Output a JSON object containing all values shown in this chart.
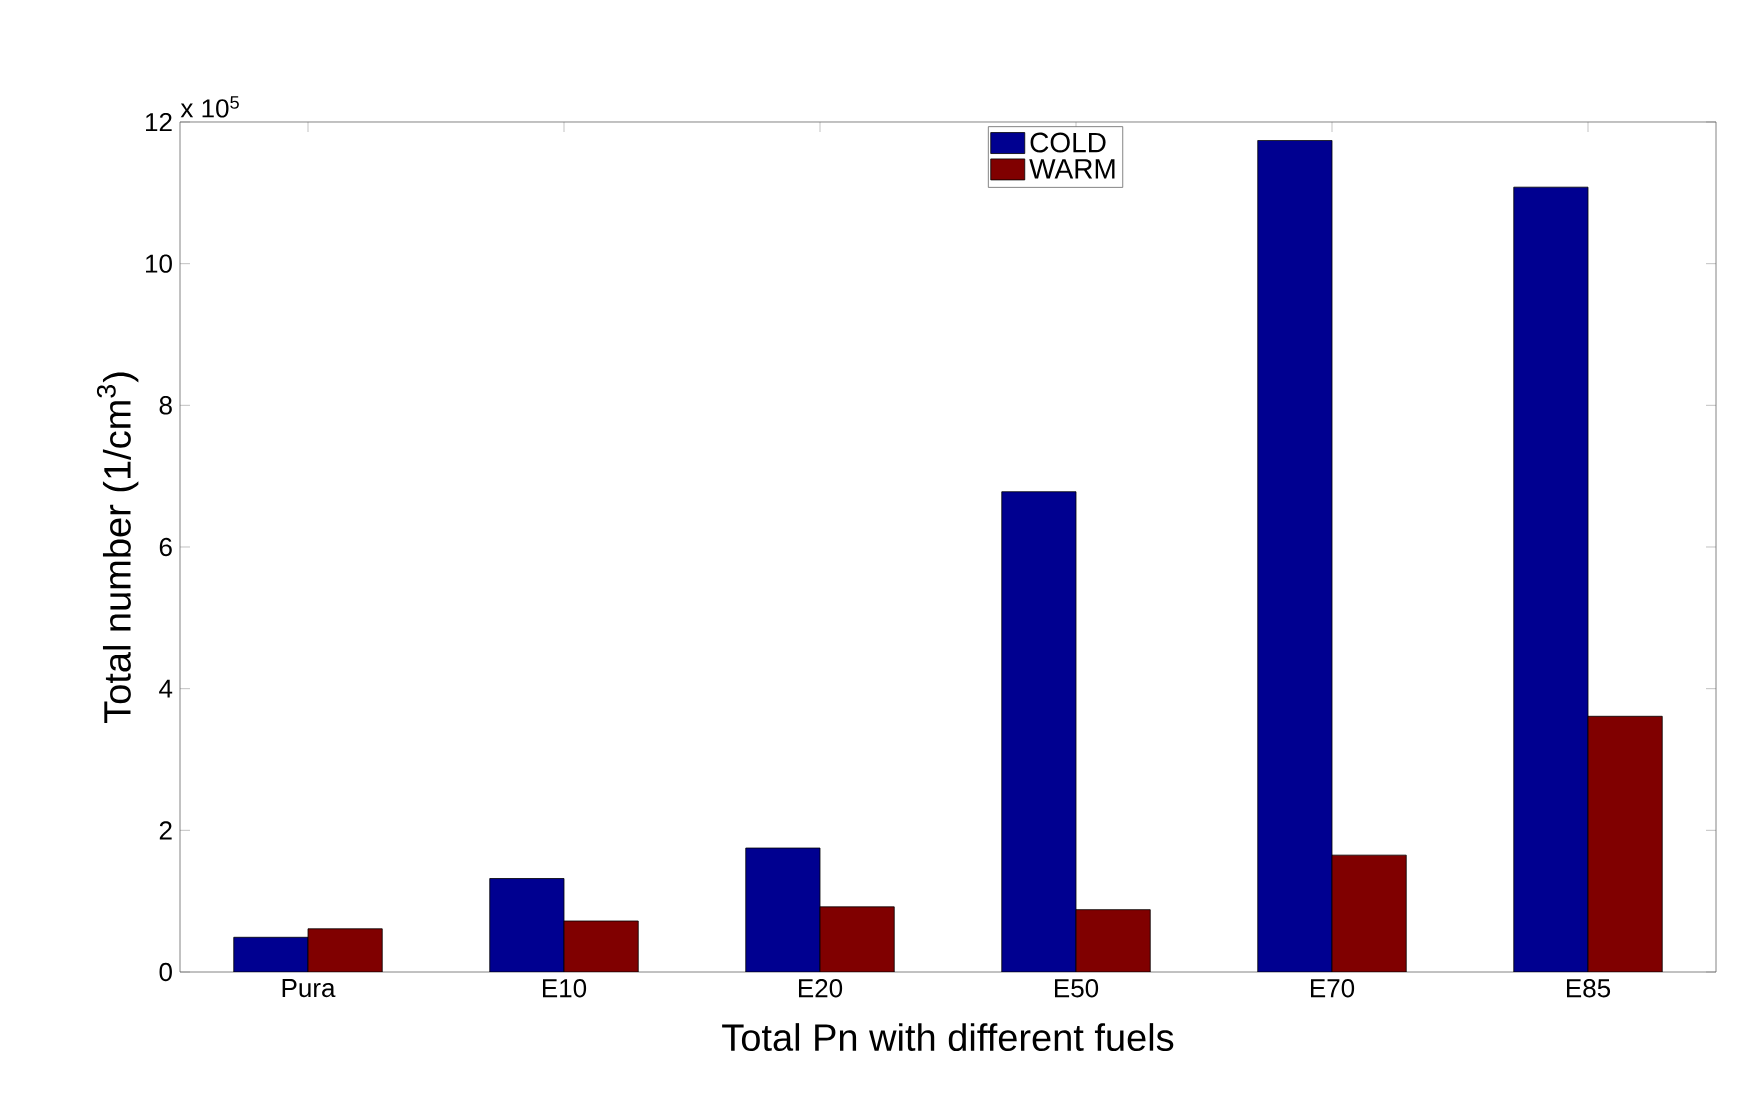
{
  "chart_data": {
    "type": "bar",
    "xlabel": "Total Pn with different fuels",
    "ylabel": "Total number (1/cm$^{3}$)",
    "annotations": [
      "x 10$^{5}$"
    ],
    "categories": [
      "Pura",
      "E10",
      "E20",
      "E50",
      "E70",
      "E85"
    ],
    "series": [
      {
        "name": "COLD",
        "color": "#000090",
        "values": [
          0.49,
          1.32,
          1.75,
          6.78,
          11.74,
          11.08
        ]
      },
      {
        "name": "WARM",
        "color": "#800000",
        "values": [
          0.61,
          0.72,
          0.92,
          0.88,
          1.65,
          3.61
        ]
      }
    ],
    "ylim": [
      0,
      12
    ],
    "yticks": [
      0,
      2,
      4,
      6,
      8,
      10,
      12
    ],
    "legend": "top"
  }
}
